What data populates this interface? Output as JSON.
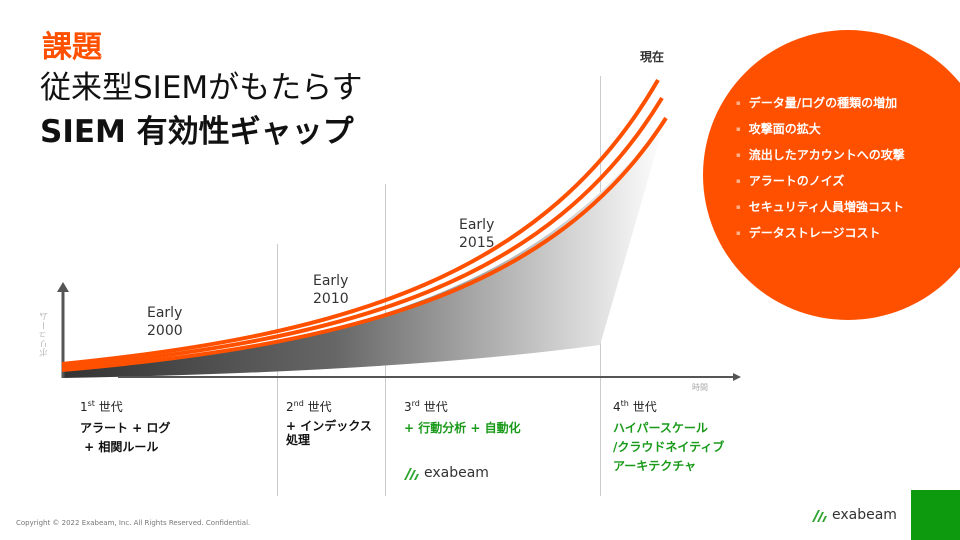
{
  "title": {
    "label": "課題",
    "line1": "従来型SIEMがもたらす",
    "line2": "SIEM 有効性ギャップ"
  },
  "chart": {
    "now": "現在",
    "y_axis": "ボリューム",
    "x_axis": "時間",
    "eras": [
      {
        "label": "Early",
        "year": "2000"
      },
      {
        "label": "Early",
        "year": "2010"
      },
      {
        "label": "Early",
        "year": "2015"
      }
    ]
  },
  "generations": [
    {
      "num": "1",
      "sup": "st",
      "word": "世代",
      "lines": [
        "アラート + ログ",
        " + 相関ルール"
      ]
    },
    {
      "num": "2",
      "sup": "nd",
      "word": "世代",
      "lines": [
        "+ インデックス",
        "処理"
      ]
    },
    {
      "num": "3",
      "sup": "rd",
      "word": "世代",
      "lines": [
        "+ 行動分析 + 自動化"
      ]
    },
    {
      "num": "4",
      "sup": "th",
      "word": "世代",
      "lines": [
        "ハイパースケール",
        "/クラウドネイティブ",
        "アーキテクチャ"
      ]
    }
  ],
  "bullets": [
    "データ量/ログの種類の増加",
    "攻撃面の拡大",
    "流出したアカウントへの攻撃",
    "アラートのノイズ",
    "セキュリティ人員増強コスト",
    "データストレージコスト"
  ],
  "logo": "exabeam",
  "footer": "Copyright © 2022 Exabeam, Inc. All Rights Reserved. Confidential.",
  "colors": {
    "accent": "#ff5000",
    "green": "#0e9a0e"
  }
}
